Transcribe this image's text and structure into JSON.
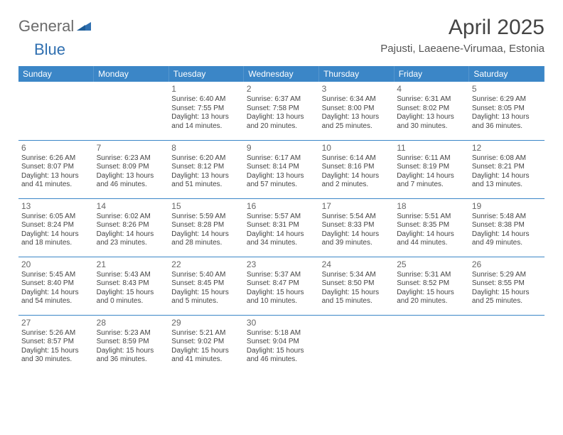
{
  "brand": {
    "part1": "General",
    "part2": "Blue"
  },
  "title": "April 2025",
  "location": "Pajusti, Laeaene-Virumaa, Estonia",
  "colors": {
    "header_bg": "#3b86c7",
    "header_text": "#ffffff",
    "border": "#3b86c7",
    "text": "#444444",
    "brand_gray": "#6b6b6b",
    "brand_blue": "#2f6fb0",
    "background": "#ffffff"
  },
  "weekdays": [
    "Sunday",
    "Monday",
    "Tuesday",
    "Wednesday",
    "Thursday",
    "Friday",
    "Saturday"
  ],
  "weeks": [
    [
      {
        "day": "",
        "sunrise": "",
        "sunset": "",
        "daylight": ""
      },
      {
        "day": "",
        "sunrise": "",
        "sunset": "",
        "daylight": ""
      },
      {
        "day": "1",
        "sunrise": "Sunrise: 6:40 AM",
        "sunset": "Sunset: 7:55 PM",
        "daylight": "Daylight: 13 hours and 14 minutes."
      },
      {
        "day": "2",
        "sunrise": "Sunrise: 6:37 AM",
        "sunset": "Sunset: 7:58 PM",
        "daylight": "Daylight: 13 hours and 20 minutes."
      },
      {
        "day": "3",
        "sunrise": "Sunrise: 6:34 AM",
        "sunset": "Sunset: 8:00 PM",
        "daylight": "Daylight: 13 hours and 25 minutes."
      },
      {
        "day": "4",
        "sunrise": "Sunrise: 6:31 AM",
        "sunset": "Sunset: 8:02 PM",
        "daylight": "Daylight: 13 hours and 30 minutes."
      },
      {
        "day": "5",
        "sunrise": "Sunrise: 6:29 AM",
        "sunset": "Sunset: 8:05 PM",
        "daylight": "Daylight: 13 hours and 36 minutes."
      }
    ],
    [
      {
        "day": "6",
        "sunrise": "Sunrise: 6:26 AM",
        "sunset": "Sunset: 8:07 PM",
        "daylight": "Daylight: 13 hours and 41 minutes."
      },
      {
        "day": "7",
        "sunrise": "Sunrise: 6:23 AM",
        "sunset": "Sunset: 8:09 PM",
        "daylight": "Daylight: 13 hours and 46 minutes."
      },
      {
        "day": "8",
        "sunrise": "Sunrise: 6:20 AM",
        "sunset": "Sunset: 8:12 PM",
        "daylight": "Daylight: 13 hours and 51 minutes."
      },
      {
        "day": "9",
        "sunrise": "Sunrise: 6:17 AM",
        "sunset": "Sunset: 8:14 PM",
        "daylight": "Daylight: 13 hours and 57 minutes."
      },
      {
        "day": "10",
        "sunrise": "Sunrise: 6:14 AM",
        "sunset": "Sunset: 8:16 PM",
        "daylight": "Daylight: 14 hours and 2 minutes."
      },
      {
        "day": "11",
        "sunrise": "Sunrise: 6:11 AM",
        "sunset": "Sunset: 8:19 PM",
        "daylight": "Daylight: 14 hours and 7 minutes."
      },
      {
        "day": "12",
        "sunrise": "Sunrise: 6:08 AM",
        "sunset": "Sunset: 8:21 PM",
        "daylight": "Daylight: 14 hours and 13 minutes."
      }
    ],
    [
      {
        "day": "13",
        "sunrise": "Sunrise: 6:05 AM",
        "sunset": "Sunset: 8:24 PM",
        "daylight": "Daylight: 14 hours and 18 minutes."
      },
      {
        "day": "14",
        "sunrise": "Sunrise: 6:02 AM",
        "sunset": "Sunset: 8:26 PM",
        "daylight": "Daylight: 14 hours and 23 minutes."
      },
      {
        "day": "15",
        "sunrise": "Sunrise: 5:59 AM",
        "sunset": "Sunset: 8:28 PM",
        "daylight": "Daylight: 14 hours and 28 minutes."
      },
      {
        "day": "16",
        "sunrise": "Sunrise: 5:57 AM",
        "sunset": "Sunset: 8:31 PM",
        "daylight": "Daylight: 14 hours and 34 minutes."
      },
      {
        "day": "17",
        "sunrise": "Sunrise: 5:54 AM",
        "sunset": "Sunset: 8:33 PM",
        "daylight": "Daylight: 14 hours and 39 minutes."
      },
      {
        "day": "18",
        "sunrise": "Sunrise: 5:51 AM",
        "sunset": "Sunset: 8:35 PM",
        "daylight": "Daylight: 14 hours and 44 minutes."
      },
      {
        "day": "19",
        "sunrise": "Sunrise: 5:48 AM",
        "sunset": "Sunset: 8:38 PM",
        "daylight": "Daylight: 14 hours and 49 minutes."
      }
    ],
    [
      {
        "day": "20",
        "sunrise": "Sunrise: 5:45 AM",
        "sunset": "Sunset: 8:40 PM",
        "daylight": "Daylight: 14 hours and 54 minutes."
      },
      {
        "day": "21",
        "sunrise": "Sunrise: 5:43 AM",
        "sunset": "Sunset: 8:43 PM",
        "daylight": "Daylight: 15 hours and 0 minutes."
      },
      {
        "day": "22",
        "sunrise": "Sunrise: 5:40 AM",
        "sunset": "Sunset: 8:45 PM",
        "daylight": "Daylight: 15 hours and 5 minutes."
      },
      {
        "day": "23",
        "sunrise": "Sunrise: 5:37 AM",
        "sunset": "Sunset: 8:47 PM",
        "daylight": "Daylight: 15 hours and 10 minutes."
      },
      {
        "day": "24",
        "sunrise": "Sunrise: 5:34 AM",
        "sunset": "Sunset: 8:50 PM",
        "daylight": "Daylight: 15 hours and 15 minutes."
      },
      {
        "day": "25",
        "sunrise": "Sunrise: 5:31 AM",
        "sunset": "Sunset: 8:52 PM",
        "daylight": "Daylight: 15 hours and 20 minutes."
      },
      {
        "day": "26",
        "sunrise": "Sunrise: 5:29 AM",
        "sunset": "Sunset: 8:55 PM",
        "daylight": "Daylight: 15 hours and 25 minutes."
      }
    ],
    [
      {
        "day": "27",
        "sunrise": "Sunrise: 5:26 AM",
        "sunset": "Sunset: 8:57 PM",
        "daylight": "Daylight: 15 hours and 30 minutes."
      },
      {
        "day": "28",
        "sunrise": "Sunrise: 5:23 AM",
        "sunset": "Sunset: 8:59 PM",
        "daylight": "Daylight: 15 hours and 36 minutes."
      },
      {
        "day": "29",
        "sunrise": "Sunrise: 5:21 AM",
        "sunset": "Sunset: 9:02 PM",
        "daylight": "Daylight: 15 hours and 41 minutes."
      },
      {
        "day": "30",
        "sunrise": "Sunrise: 5:18 AM",
        "sunset": "Sunset: 9:04 PM",
        "daylight": "Daylight: 15 hours and 46 minutes."
      },
      {
        "day": "",
        "sunrise": "",
        "sunset": "",
        "daylight": ""
      },
      {
        "day": "",
        "sunrise": "",
        "sunset": "",
        "daylight": ""
      },
      {
        "day": "",
        "sunrise": "",
        "sunset": "",
        "daylight": ""
      }
    ]
  ]
}
